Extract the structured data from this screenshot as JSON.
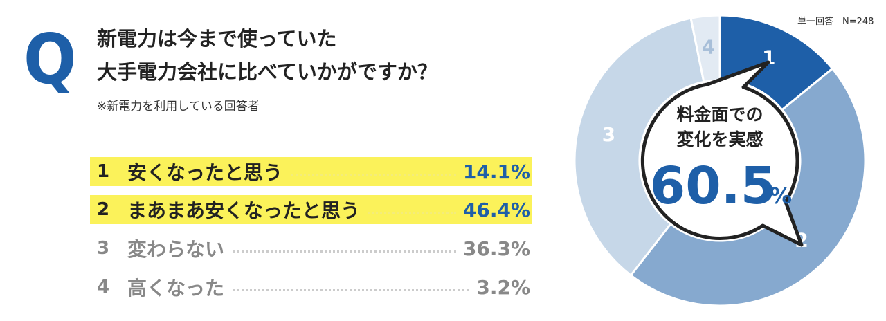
{
  "question": {
    "mark": "Q",
    "line1": "新電力は今まで使っていた",
    "line2": "大手電力会社に比べていかがですか？",
    "note": "※新電力を利用している回答者"
  },
  "respondents": "単一回答　N=248",
  "center": {
    "line1": "料金面での",
    "line2": "変化を実感",
    "value": "60.5",
    "unit": "%"
  },
  "chart_data": {
    "type": "pie",
    "categories": [
      "安くなったと思う",
      "まあまあ安くなったと思う",
      "変わらない",
      "高くなった"
    ],
    "category_numbers": [
      "1",
      "2",
      "3",
      "4"
    ],
    "values": [
      14.1,
      46.4,
      36.3,
      3.2
    ],
    "value_labels": [
      "14.1%",
      "46.4%",
      "36.3%",
      "3.2%"
    ],
    "colors": [
      "#1e5fa8",
      "#86a9cf",
      "#c6d7e8",
      "#e2eaf3"
    ],
    "highlighted": [
      true,
      true,
      false,
      false
    ],
    "title": ""
  }
}
